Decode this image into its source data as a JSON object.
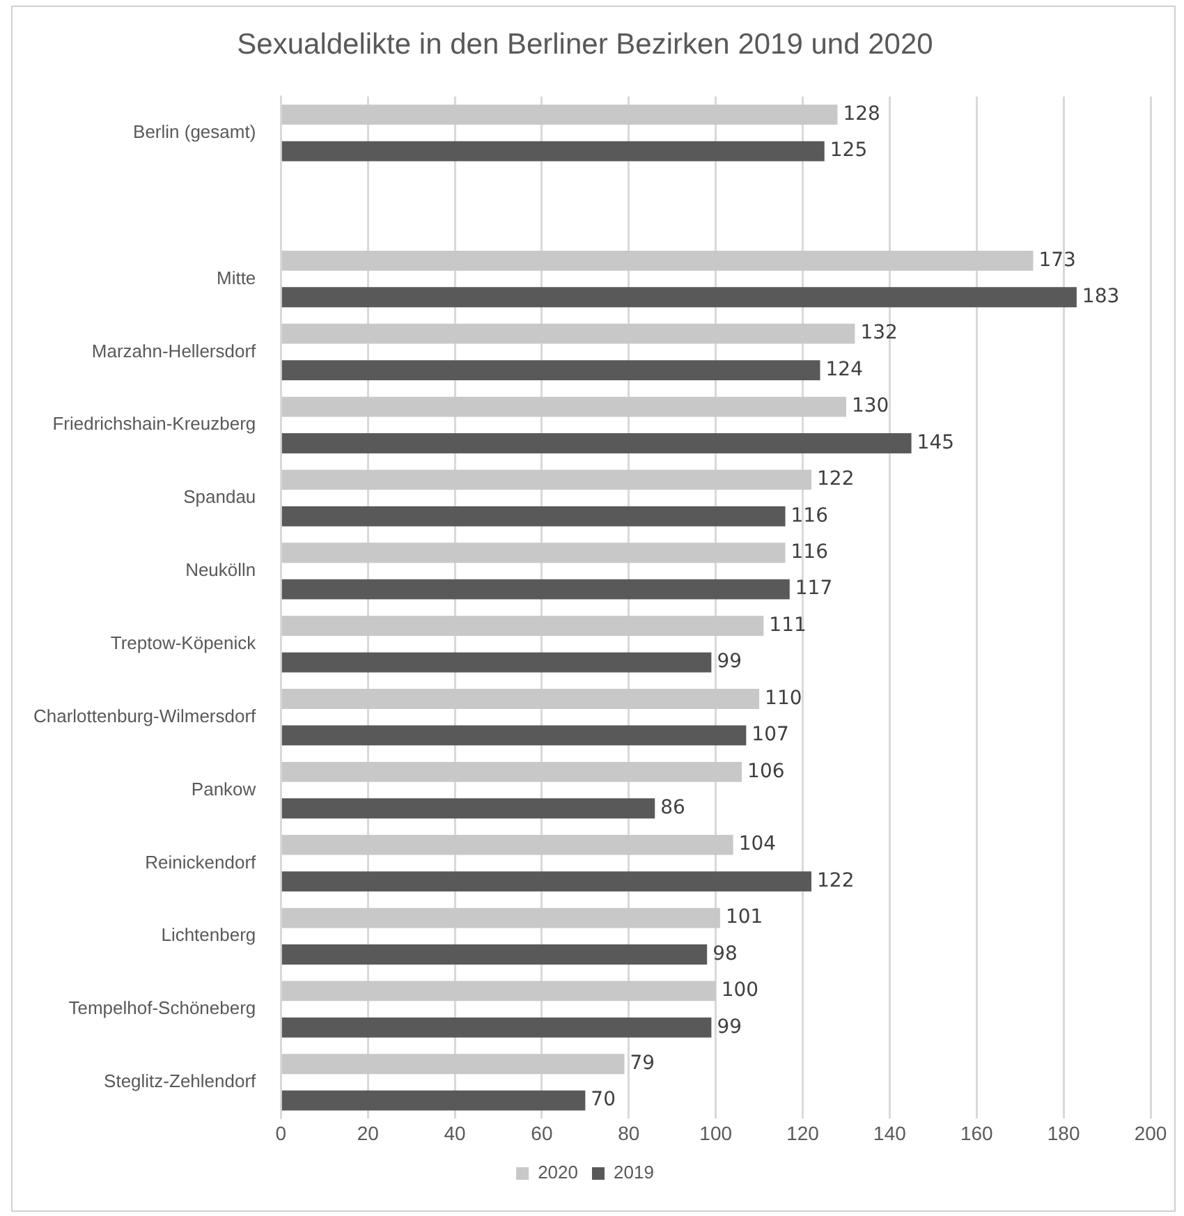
{
  "chart_data": {
    "type": "bar",
    "orientation": "horizontal",
    "title": "Sexualdelikte in den Berliner Bezirken 2019 und 2020",
    "categories": [
      "Berlin (gesamt)",
      null,
      "Mitte",
      "Marzahn-Hellersdorf",
      "Friedrichshain-Kreuzberg",
      "Spandau",
      "Neukölln",
      "Treptow-Köpenick",
      "Charlottenburg-Wilmersdorf",
      "Pankow",
      "Reinickendorf",
      "Lichtenberg",
      "Tempelhof-Schöneberg",
      "Steglitz-Zehlendorf"
    ],
    "series": [
      {
        "name": "2020",
        "color": "#c8c8c8",
        "values": [
          128,
          null,
          173,
          132,
          130,
          122,
          116,
          111,
          110,
          106,
          104,
          101,
          100,
          79
        ]
      },
      {
        "name": "2019",
        "color": "#595959",
        "values": [
          125,
          null,
          183,
          124,
          145,
          116,
          117,
          99,
          107,
          86,
          122,
          98,
          99,
          70
        ]
      }
    ],
    "xlim": [
      0,
      200
    ],
    "xticks": [
      0,
      20,
      40,
      60,
      80,
      100,
      120,
      140,
      160,
      180,
      200
    ],
    "grid": "x",
    "legend": "bottom",
    "data_labels": true
  }
}
